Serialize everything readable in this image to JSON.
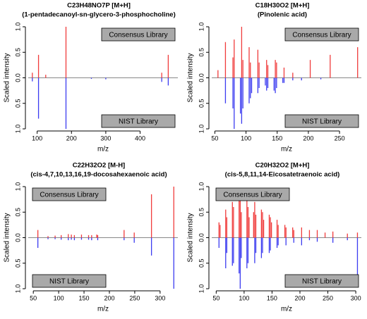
{
  "chart_data": [
    {
      "type": "stem",
      "title": "C23H48NO7P [M+H]",
      "subtitle": "(1-pentadecanoyl-sn-glycero-3-phosphocholine)",
      "xlabel": "m/z",
      "ylabel": "Scaled intensity",
      "xlim": [
        74,
        510
      ],
      "xticks": [
        100,
        200,
        300,
        400
      ],
      "ylim": [
        -1,
        1
      ],
      "yticks": [
        {
          "value": -1,
          "label": "1.0"
        },
        {
          "value": -0.5,
          "label": "0.5"
        },
        {
          "value": 0,
          "label": "0.0"
        },
        {
          "value": 0.5,
          "label": "0.5"
        },
        {
          "value": 1,
          "label": "1.0"
        }
      ],
      "series": [
        {
          "name": "Consensus Library",
          "color": "#f03c3c",
          "legend": "top right",
          "x": [
            86,
            104,
            125,
            184,
            463,
            482
          ],
          "values": [
            0.1,
            0.45,
            0.06,
            1.0,
            0.1,
            0.45
          ]
        },
        {
          "name": "NIST Library",
          "color": "#3c3cf0",
          "legend": "bottom right",
          "x": [
            86,
            104,
            184,
            258,
            300,
            463,
            482
          ],
          "values": [
            -0.07,
            -0.8,
            -1.0,
            -0.02,
            -0.03,
            -0.08,
            -0.15
          ]
        }
      ]
    },
    {
      "type": "stem",
      "title": "C18H30O2 [M+H]",
      "subtitle": "(Pinolenic acid)",
      "xlabel": "m/z",
      "ylabel": "Scaled intensity",
      "xlim": [
        45,
        285
      ],
      "xticks": [
        50,
        100,
        150,
        200,
        250
      ],
      "ylim": [
        -1,
        1
      ],
      "yticks": [
        {
          "value": -1,
          "label": "1.0"
        },
        {
          "value": -0.5,
          "label": "0.5"
        },
        {
          "value": 0,
          "label": "0.0"
        },
        {
          "value": 0.5,
          "label": "0.5"
        },
        {
          "value": 1,
          "label": "1.0"
        }
      ],
      "series": [
        {
          "name": "Consensus Library",
          "color": "#f03c3c",
          "legend": "top right",
          "x": [
            55,
            67,
            79,
            81,
            93,
            95,
            105,
            107,
            119,
            121,
            133,
            135,
            147,
            149,
            161,
            175,
            203,
            235,
            279
          ],
          "values": [
            0.15,
            0.7,
            0.4,
            0.75,
            1.0,
            0.35,
            0.6,
            0.3,
            0.55,
            0.3,
            0.35,
            0.25,
            0.35,
            0.3,
            0.2,
            0.1,
            0.35,
            0.45,
            0.6
          ]
        },
        {
          "name": "NIST Library",
          "color": "#3c3cf0",
          "legend": "bottom right",
          "x": [
            67,
            79,
            81,
            91,
            93,
            95,
            105,
            107,
            109,
            119,
            121,
            131,
            133,
            135,
            145,
            147,
            149,
            159,
            161,
            175,
            189,
            220
          ],
          "values": [
            -0.5,
            -0.6,
            -1.0,
            -0.7,
            -0.9,
            -0.6,
            -0.5,
            -0.4,
            -0.3,
            -0.3,
            -0.2,
            -0.15,
            -0.25,
            -0.2,
            -0.25,
            -0.3,
            -0.2,
            -0.1,
            -0.1,
            -0.05,
            -0.05,
            -0.03
          ]
        }
      ]
    },
    {
      "type": "stem",
      "title": "C22H32O2 [M-H]",
      "subtitle": "(cis-4,7,10,13,16,19-docosahexaenoic acid)",
      "xlabel": "m/z",
      "ylabel": "Scaled intensity",
      "xlim": [
        40,
        335
      ],
      "xticks": [
        50,
        100,
        150,
        200,
        250,
        300
      ],
      "ylim": [
        -1,
        1
      ],
      "yticks": [
        {
          "value": -1,
          "label": "1.0"
        },
        {
          "value": -0.5,
          "label": "0.5"
        },
        {
          "value": 0,
          "label": "0.0"
        },
        {
          "value": 0.5,
          "label": "0.5"
        },
        {
          "value": 1,
          "label": "1.0"
        }
      ],
      "series": [
        {
          "name": "Consensus Library",
          "color": "#f03c3c",
          "legend": "top left",
          "x": [
            59,
            79,
            93,
            105,
            119,
            125,
            131,
            145,
            159,
            165,
            175,
            177,
            229,
            249,
            283,
            327
          ],
          "values": [
            0.15,
            0.03,
            0.04,
            0.05,
            0.07,
            0.06,
            0.05,
            0.06,
            0.05,
            0.05,
            0.06,
            0.05,
            0.15,
            0.1,
            0.85,
            1.0
          ]
        },
        {
          "name": "NIST Library",
          "color": "#3c3cf0",
          "legend": "bottom left",
          "x": [
            59,
            79,
            93,
            105,
            119,
            125,
            131,
            145,
            159,
            165,
            177,
            229,
            249,
            283,
            327
          ],
          "values": [
            -0.2,
            -0.03,
            -0.03,
            -0.04,
            -0.05,
            -0.04,
            -0.05,
            -0.04,
            -0.04,
            -0.05,
            -0.05,
            -0.05,
            -0.1,
            -0.35,
            -1.0
          ]
        }
      ]
    },
    {
      "type": "stem",
      "title": "C20H32O2 [M+H]",
      "subtitle": "(cis-5,8,11,14-Eicosatetraenoic acid)",
      "xlabel": "m/z",
      "ylabel": "Scaled intensity",
      "xlim": [
        42,
        310
      ],
      "xticks": [
        50,
        100,
        150,
        200,
        250,
        300
      ],
      "ylim": [
        -1,
        1
      ],
      "yticks": [
        {
          "value": -1,
          "label": "1.0"
        },
        {
          "value": -0.5,
          "label": "0.5"
        },
        {
          "value": 0,
          "label": "0.0"
        },
        {
          "value": 0.5,
          "label": "0.5"
        },
        {
          "value": 1,
          "label": "1.0"
        }
      ],
      "series": [
        {
          "name": "Consensus Library",
          "color": "#f03c3c",
          "legend": "top left",
          "x": [
            55,
            57,
            67,
            69,
            79,
            81,
            91,
            93,
            95,
            105,
            107,
            109,
            117,
            119,
            121,
            131,
            133,
            135,
            145,
            147,
            149,
            159,
            161,
            173,
            175,
            187,
            189,
            203,
            217,
            231,
            245,
            259,
            285,
            303
          ],
          "values": [
            0.3,
            0.25,
            0.55,
            0.4,
            0.7,
            0.6,
            0.9,
            0.8,
            0.5,
            0.75,
            0.6,
            0.4,
            0.5,
            0.7,
            0.45,
            0.55,
            0.5,
            0.35,
            0.45,
            0.4,
            0.3,
            0.35,
            0.25,
            0.25,
            0.2,
            0.2,
            0.15,
            0.2,
            0.15,
            0.15,
            0.1,
            0.12,
            0.08,
            0.1
          ]
        },
        {
          "name": "NIST Library",
          "color": "#3c3cf0",
          "legend": "bottom right",
          "x": [
            55,
            67,
            69,
            79,
            81,
            91,
            93,
            95,
            105,
            107,
            119,
            121,
            131,
            133,
            145,
            147,
            159,
            161,
            175,
            189,
            203,
            217,
            231,
            259,
            285,
            303
          ],
          "values": [
            -0.2,
            -0.6,
            -0.3,
            -0.55,
            -0.5,
            -0.7,
            -1.0,
            -0.4,
            -0.6,
            -0.5,
            -0.5,
            -0.3,
            -0.4,
            -0.3,
            -0.3,
            -0.25,
            -0.2,
            -0.15,
            -0.15,
            -0.1,
            -0.15,
            -0.05,
            -0.08,
            -0.1,
            -0.05,
            -0.9
          ]
        }
      ]
    }
  ]
}
